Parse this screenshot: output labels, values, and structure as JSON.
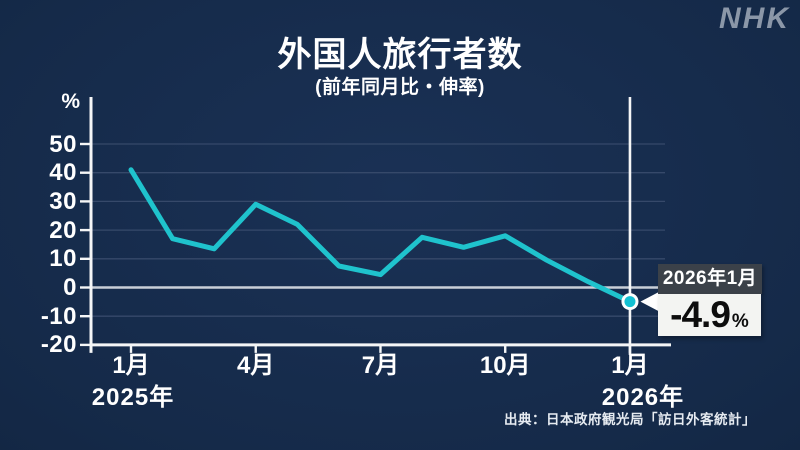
{
  "brand": {
    "logo_text": "NHK"
  },
  "header": {
    "title": "外国人旅行者数",
    "subtitle": "(前年同月比・伸率)"
  },
  "source_text": "出典：日本政府観光局「訪日外客統計」",
  "colors": {
    "background": "#152a49",
    "line": "#1fc3cd",
    "marker": "#14c1d3",
    "marker_ring": "#ffffff",
    "axis": "#f5f6f7",
    "grid": "#36496a",
    "zero_line": "#c9cfd8",
    "highlight_line": "#f5f6f7",
    "callout_label_bg": "#3b4149",
    "callout_label_text": "#ffffff",
    "callout_value_bg": "#f3f4f2",
    "callout_value_text": "#0d0d0d",
    "logo": "#8b97a8",
    "text": "#ffffff"
  },
  "chart_data": {
    "type": "line",
    "title": "外国人旅行者数",
    "subtitle": "(前年同月比・伸率)",
    "unit": "%",
    "x": [
      "2025年1月",
      "2025年2月",
      "2025年3月",
      "2025年4月",
      "2025年5月",
      "2025年6月",
      "2025年7月",
      "2025年8月",
      "2025年9月",
      "2025年10月",
      "2025年11月",
      "2025年12月",
      "2026年1月"
    ],
    "values": [
      41,
      17,
      13.5,
      29,
      22,
      7.5,
      4.5,
      17.5,
      14,
      18,
      9.5,
      2,
      -4.9
    ],
    "ylim": [
      -20,
      55
    ],
    "yticks": [
      50,
      40,
      30,
      20,
      10,
      0,
      -10,
      -20
    ],
    "xticks": [
      {
        "label": "1月",
        "index": 0
      },
      {
        "label": "4月",
        "index": 3
      },
      {
        "label": "7月",
        "index": 6
      },
      {
        "label": "10月",
        "index": 9
      },
      {
        "label": "1月",
        "index": 12
      }
    ],
    "year_labels": [
      {
        "label": "2025年",
        "index": 0
      },
      {
        "label": "2026年",
        "index": 12
      }
    ],
    "grid": true,
    "legend": false,
    "highlight_index": 12,
    "annotation": {
      "label": "2026年1月",
      "value": "-4.9",
      "unit": "%"
    }
  }
}
